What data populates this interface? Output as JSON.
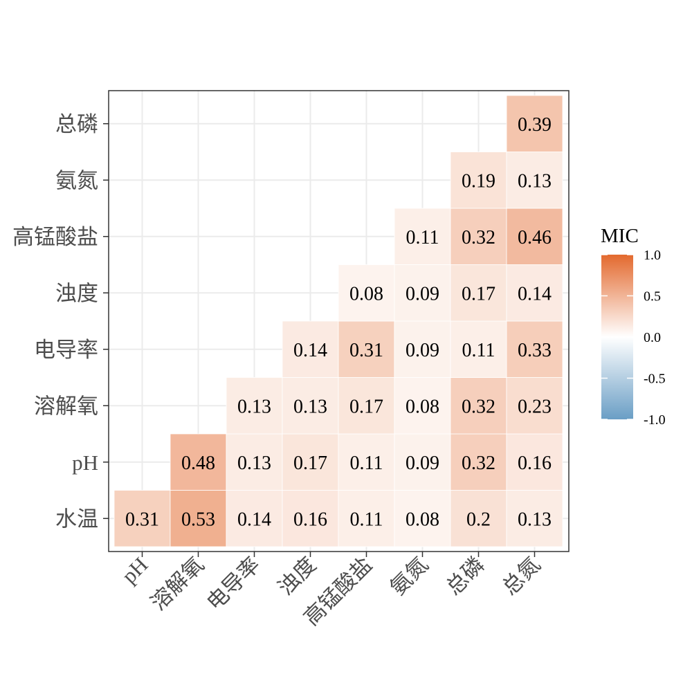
{
  "chart_data": {
    "type": "heatmap",
    "title": "",
    "xlabel": "",
    "ylabel": "",
    "x_categories": [
      "pH",
      "溶解氧",
      "电导率",
      "浊度",
      "高锰酸盐",
      "氨氮",
      "总磷",
      "总氮"
    ],
    "y_categories": [
      "水温",
      "pH",
      "溶解氧",
      "电导率",
      "浊度",
      "高锰酸盐",
      "氨氮",
      "总磷"
    ],
    "cells": [
      {
        "y": "水温",
        "x": "pH",
        "value": 0.31,
        "label": "0.31"
      },
      {
        "y": "水温",
        "x": "溶解氧",
        "value": 0.53,
        "label": "0.53"
      },
      {
        "y": "水温",
        "x": "电导率",
        "value": 0.14,
        "label": "0.14"
      },
      {
        "y": "水温",
        "x": "浊度",
        "value": 0.16,
        "label": "0.16"
      },
      {
        "y": "水温",
        "x": "高锰酸盐",
        "value": 0.11,
        "label": "0.11"
      },
      {
        "y": "水温",
        "x": "氨氮",
        "value": 0.08,
        "label": "0.08"
      },
      {
        "y": "水温",
        "x": "总磷",
        "value": 0.2,
        "label": "0.2"
      },
      {
        "y": "水温",
        "x": "总氮",
        "value": 0.13,
        "label": "0.13"
      },
      {
        "y": "pH",
        "x": "溶解氧",
        "value": 0.48,
        "label": "0.48"
      },
      {
        "y": "pH",
        "x": "电导率",
        "value": 0.13,
        "label": "0.13"
      },
      {
        "y": "pH",
        "x": "浊度",
        "value": 0.17,
        "label": "0.17"
      },
      {
        "y": "pH",
        "x": "高锰酸盐",
        "value": 0.11,
        "label": "0.11"
      },
      {
        "y": "pH",
        "x": "氨氮",
        "value": 0.09,
        "label": "0.09"
      },
      {
        "y": "pH",
        "x": "总磷",
        "value": 0.32,
        "label": "0.32"
      },
      {
        "y": "pH",
        "x": "总氮",
        "value": 0.16,
        "label": "0.16"
      },
      {
        "y": "溶解氧",
        "x": "电导率",
        "value": 0.13,
        "label": "0.13"
      },
      {
        "y": "溶解氧",
        "x": "浊度",
        "value": 0.13,
        "label": "0.13"
      },
      {
        "y": "溶解氧",
        "x": "高锰酸盐",
        "value": 0.17,
        "label": "0.17"
      },
      {
        "y": "溶解氧",
        "x": "氨氮",
        "value": 0.08,
        "label": "0.08"
      },
      {
        "y": "溶解氧",
        "x": "总磷",
        "value": 0.32,
        "label": "0.32"
      },
      {
        "y": "溶解氧",
        "x": "总氮",
        "value": 0.23,
        "label": "0.23"
      },
      {
        "y": "电导率",
        "x": "浊度",
        "value": 0.14,
        "label": "0.14"
      },
      {
        "y": "电导率",
        "x": "高锰酸盐",
        "value": 0.31,
        "label": "0.31"
      },
      {
        "y": "电导率",
        "x": "氨氮",
        "value": 0.09,
        "label": "0.09"
      },
      {
        "y": "电导率",
        "x": "总磷",
        "value": 0.11,
        "label": "0.11"
      },
      {
        "y": "电导率",
        "x": "总氮",
        "value": 0.33,
        "label": "0.33"
      },
      {
        "y": "浊度",
        "x": "高锰酸盐",
        "value": 0.08,
        "label": "0.08"
      },
      {
        "y": "浊度",
        "x": "氨氮",
        "value": 0.09,
        "label": "0.09"
      },
      {
        "y": "浊度",
        "x": "总磷",
        "value": 0.17,
        "label": "0.17"
      },
      {
        "y": "浊度",
        "x": "总氮",
        "value": 0.14,
        "label": "0.14"
      },
      {
        "y": "高锰酸盐",
        "x": "氨氮",
        "value": 0.11,
        "label": "0.11"
      },
      {
        "y": "高锰酸盐",
        "x": "总磷",
        "value": 0.32,
        "label": "0.32"
      },
      {
        "y": "高锰酸盐",
        "x": "总氮",
        "value": 0.46,
        "label": "0.46"
      },
      {
        "y": "氨氮",
        "x": "总磷",
        "value": 0.19,
        "label": "0.19"
      },
      {
        "y": "氨氮",
        "x": "总氮",
        "value": 0.13,
        "label": "0.13"
      },
      {
        "y": "总磷",
        "x": "总氮",
        "value": 0.39,
        "label": "0.39"
      }
    ],
    "legend": {
      "title": "MIC",
      "position": "right",
      "range": [
        -1.0,
        1.0
      ],
      "ticks": [
        "1.0",
        "0.5",
        "0.0",
        "-0.5",
        "-1.0"
      ],
      "low_color": "#6a9ec5",
      "mid_color": "#ffffff",
      "high_color": "#e3692e"
    },
    "grid": true
  }
}
